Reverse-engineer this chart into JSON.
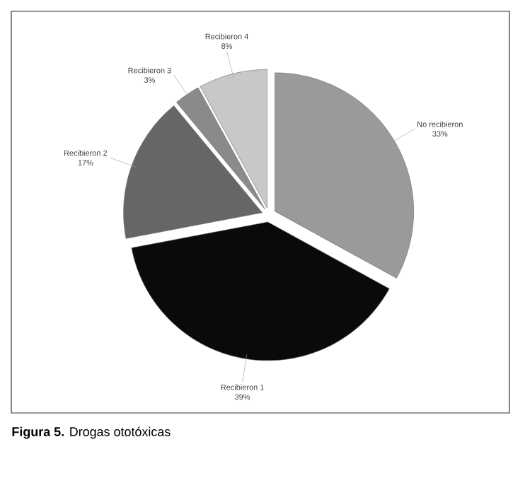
{
  "chart_data": {
    "type": "pie",
    "title": "**Figura 5.** Drogas ototóxicas",
    "categories": [
      "No recibieron",
      "Recibieron 1",
      "Recibieron 2",
      "Recibieron 3",
      "Recibieron 4"
    ],
    "values": [
      33,
      39,
      17,
      3,
      8
    ],
    "value_labels": [
      "33%",
      "39%",
      "17%",
      "3%",
      "8%"
    ],
    "colors": [
      "#9a9a9a",
      "#0a0a0a",
      "#666666",
      "#8a8a8a",
      "#c8c8c8"
    ],
    "legend": false
  }
}
